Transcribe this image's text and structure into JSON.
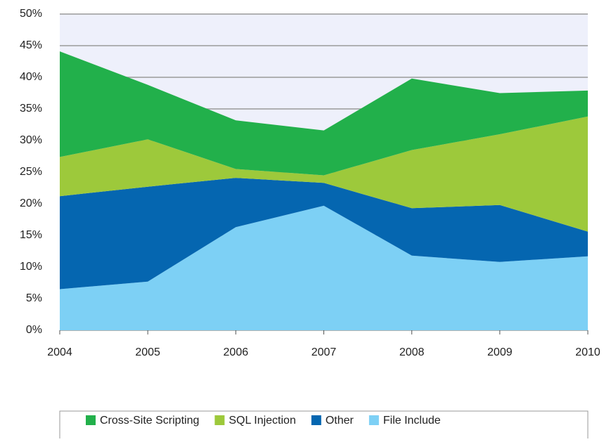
{
  "chart_data": {
    "type": "stacked_area",
    "x": [
      2004,
      2005,
      2006,
      2007,
      2008,
      2009,
      2010
    ],
    "xlim": [
      2004,
      2010
    ],
    "xticks": [
      2004,
      2005,
      2006,
      2007,
      2008,
      2009,
      2010
    ],
    "ylim": [
      0,
      50
    ],
    "yticks": [
      {
        "value": 0,
        "label": "0%"
      },
      {
        "value": 5,
        "label": "5%"
      },
      {
        "value": 10,
        "label": "10%"
      },
      {
        "value": 15,
        "label": "15%"
      },
      {
        "value": 20,
        "label": "20%"
      },
      {
        "value": 25,
        "label": "25%"
      },
      {
        "value": 30,
        "label": "30%"
      },
      {
        "value": 35,
        "label": "35%"
      },
      {
        "value": 40,
        "label": "40%"
      },
      {
        "value": 45,
        "label": "45%"
      },
      {
        "value": 50,
        "label": "50%"
      }
    ],
    "grid": true,
    "legend": "bottom",
    "series": [
      {
        "name": "Cross-Site Scripting",
        "color": "#22b04b",
        "values": [
          16.7,
          8.6,
          7.7,
          7.1,
          11.3,
          6.5,
          4.1
        ]
      },
      {
        "name": "SQL Injection",
        "color": "#9dc93b",
        "values": [
          6.2,
          7.5,
          1.4,
          1.2,
          9.2,
          11.2,
          18.2
        ]
      },
      {
        "name": "Other",
        "color": "#0566b0",
        "values": [
          14.7,
          15.0,
          7.8,
          3.6,
          7.5,
          9.0,
          3.9
        ]
      },
      {
        "name": "File Include",
        "color": "#7dd0f5",
        "values": [
          6.5,
          7.7,
          16.3,
          19.7,
          11.8,
          10.8,
          11.7
        ]
      }
    ]
  }
}
